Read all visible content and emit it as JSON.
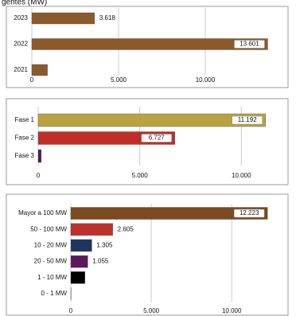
{
  "chart_data": [
    {
      "type": "bar",
      "orientation": "horizontal",
      "title": "gentes (MW)",
      "categories": [
        "2023",
        "2022",
        "2021"
      ],
      "values": [
        3618,
        13601,
        900
      ],
      "value_labels": [
        "3.618",
        "13.601",
        null
      ],
      "colors": [
        "#8b5a2b",
        "#8b5a2b",
        "#8b5a2b"
      ],
      "xlim": [
        0,
        14680
      ],
      "xticks": [
        0,
        {
          "value": 5000,
          "label": "5.000"
        },
        {
          "value": 10000,
          "label": "10.000"
        }
      ],
      "grid": true
    },
    {
      "type": "bar",
      "orientation": "horizontal",
      "categories": [
        "Fase 1",
        "Fase 2",
        "Fase 3"
      ],
      "values": [
        11192,
        6727,
        149
      ],
      "value_labels": [
        "11.192",
        "6.727",
        null
      ],
      "colors": [
        "#b9a341",
        "#bf2f28",
        "#4a1a5a"
      ],
      "xlim": [
        0,
        12300
      ],
      "xticks": [
        0,
        {
          "value": 5000,
          "label": "5.000"
        },
        {
          "value": 10000,
          "label": "10.000"
        }
      ],
      "grid": true
    },
    {
      "type": "bar",
      "orientation": "horizontal",
      "categories": [
        "Mayor a 100 MW",
        "50 - 100 MW",
        "10 - 20 MW",
        "20 - 50 MW",
        "1 - 10 MW",
        "0 - 1 MW"
      ],
      "values": [
        12223,
        2605,
        1305,
        1055,
        876,
        5
      ],
      "value_labels": [
        "12.223",
        "2.605",
        "1.305",
        "1.055",
        null,
        null
      ],
      "colors": [
        "#7b4a1e",
        "#c0302a",
        "#1f3560",
        "#5a1a5c",
        "#000000",
        "#f3e9b0"
      ],
      "xlim": [
        0,
        13500
      ],
      "xticks": [
        0,
        {
          "value": 5000,
          "label": "5.000"
        },
        {
          "value": 10000,
          "label": "10.000"
        }
      ],
      "grid": true
    }
  ]
}
